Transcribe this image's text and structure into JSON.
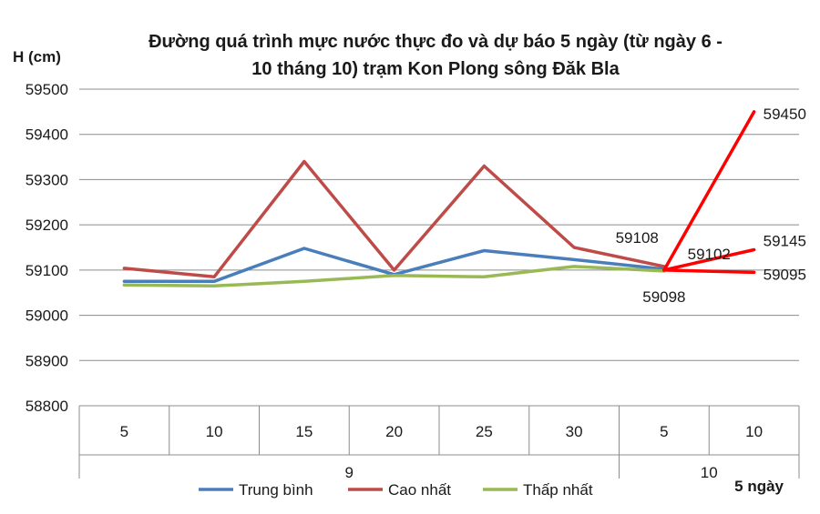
{
  "chart_data": {
    "type": "line",
    "title_lines": [
      "Đường quá trình mực nước thực đo và dự báo 5 ngày (từ ngày 6  -",
      "10 tháng 10) trạm Kon Plong sông Đăk Bla"
    ],
    "ylabel": "H (cm)",
    "ylim": [
      58800,
      59500
    ],
    "yticks": [
      58800,
      58900,
      59000,
      59100,
      59200,
      59300,
      59400,
      59500
    ],
    "grid": true,
    "categories": [
      "5",
      "10",
      "15",
      "20",
      "25",
      "30",
      "5",
      "10"
    ],
    "groups": [
      {
        "label": "9",
        "span": [
          0,
          5
        ]
      },
      {
        "label": "10",
        "span": [
          6,
          7
        ]
      }
    ],
    "series": [
      {
        "name": "Trung bình",
        "color": "#4a7ebb",
        "values": [
          59075,
          59075,
          59148,
          59090,
          59143,
          59123,
          59102,
          null
        ]
      },
      {
        "name": "Cao nhất",
        "color": "#be4b48",
        "values": [
          59104,
          59085,
          59340,
          59100,
          59330,
          59150,
          59108,
          null
        ]
      },
      {
        "name": "Thấp nhất",
        "color": "#98b954",
        "values": [
          59067,
          59065,
          59075,
          59088,
          59085,
          59108,
          59098,
          null
        ]
      }
    ],
    "forecast": {
      "color": "#ff0000",
      "start_index": 6,
      "end_index": 7,
      "start_value": 59100,
      "end_values": [
        59450,
        59145,
        59095
      ]
    },
    "data_labels": [
      {
        "text": "59450",
        "cat": 7,
        "value": 59450,
        "position": "right"
      },
      {
        "text": "59108",
        "cat": 6,
        "value": 59108,
        "position": "above-left"
      },
      {
        "text": "59102",
        "cat": 6.5,
        "value": 59102,
        "position": "above"
      },
      {
        "text": "59145",
        "cat": 7,
        "value": 59145,
        "position": "above-right"
      },
      {
        "text": "59095",
        "cat": 7,
        "value": 59095,
        "position": "right"
      },
      {
        "text": "59098",
        "cat": 6,
        "value": 59098,
        "position": "below"
      }
    ],
    "legend": {
      "placement": "bottom",
      "items": [
        {
          "label": "Trung bình",
          "color": "#4a7ebb"
        },
        {
          "label": "Cao nhất",
          "color": "#be4b48"
        },
        {
          "label": "Thấp nhất",
          "color": "#98b954"
        }
      ]
    },
    "footnote": "5 ngày"
  }
}
